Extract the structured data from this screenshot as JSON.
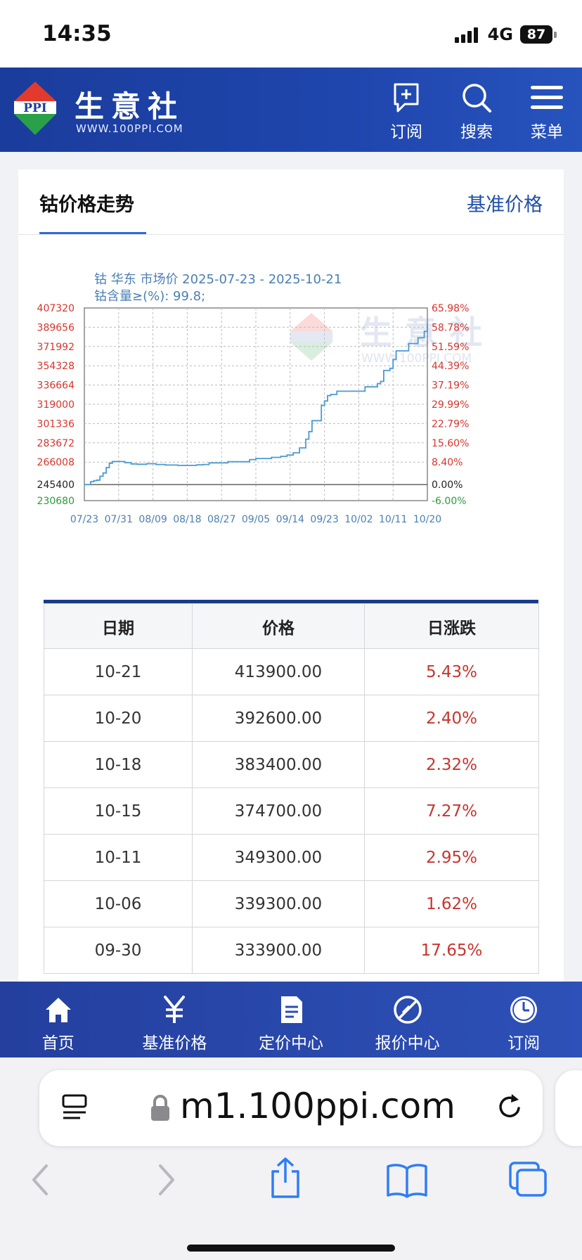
{
  "status": {
    "time": "14:35",
    "network": "4G",
    "battery": "87"
  },
  "header": {
    "logo_text": "生意社",
    "logo_url": "WWW.100PPI.COM",
    "logo_badge": "PPI",
    "buttons": [
      {
        "label": "订阅",
        "icon": "subscribe-icon"
      },
      {
        "label": "搜索",
        "icon": "search-icon"
      },
      {
        "label": "菜单",
        "icon": "menu-icon"
      }
    ]
  },
  "card": {
    "title": "钴价格走势",
    "link": "基准价格"
  },
  "chart_data": {
    "type": "line",
    "title": "钴 华东 市场价 2025-07-23 - 2025-10-21",
    "subtitle": "钴含量≥(%): 99.8;",
    "watermark": "生意社",
    "watermark_url": "WWW.100PPI.COM",
    "x_ticks": [
      "07/23",
      "07/31",
      "08/09",
      "08/18",
      "08/27",
      "09/05",
      "09/14",
      "09/23",
      "10/02",
      "10/11",
      "10/20"
    ],
    "y_left_ticks": [
      "407320",
      "389656",
      "371992",
      "354328",
      "336664",
      "319000",
      "301336",
      "283672",
      "266008",
      "245400",
      "230680"
    ],
    "y_right_ticks": [
      "65.98%",
      "58.78%",
      "51.59%",
      "44.39%",
      "37.19%",
      "29.99%",
      "22.79%",
      "15.60%",
      "8.40%",
      "0.00%",
      "-6.00%"
    ],
    "ylim": [
      230680,
      407320
    ],
    "baseline": 245400,
    "series": [
      {
        "values": [
          [
            0,
            245400
          ],
          [
            1,
            245400
          ],
          [
            2,
            248000
          ],
          [
            3,
            249000
          ],
          [
            4,
            249500
          ],
          [
            5,
            253000
          ],
          [
            6,
            256000
          ],
          [
            7,
            261000
          ],
          [
            8,
            265000
          ],
          [
            9,
            266500
          ],
          [
            11,
            266500
          ],
          [
            13,
            265500
          ],
          [
            15,
            264300
          ],
          [
            17,
            264000
          ],
          [
            20,
            264500
          ],
          [
            23,
            263800
          ],
          [
            26,
            263300
          ],
          [
            30,
            263000
          ],
          [
            34,
            263000
          ],
          [
            36,
            263500
          ],
          [
            38,
            263800
          ],
          [
            40,
            265300
          ],
          [
            43,
            265300
          ],
          [
            46,
            266300
          ],
          [
            49,
            266300
          ],
          [
            51,
            266300
          ],
          [
            53,
            268300
          ],
          [
            55,
            269300
          ],
          [
            58,
            269300
          ],
          [
            60,
            270300
          ],
          [
            63,
            271300
          ],
          [
            65,
            272500
          ],
          [
            67,
            274500
          ],
          [
            69,
            279000
          ],
          [
            71,
            287000
          ],
          [
            72,
            294000
          ],
          [
            73,
            304000
          ],
          [
            75,
            304000
          ],
          [
            76,
            318000
          ],
          [
            77,
            322000
          ],
          [
            78,
            327000
          ],
          [
            79,
            328000
          ],
          [
            81,
            331000
          ],
          [
            83,
            331000
          ],
          [
            85,
            331000
          ],
          [
            87,
            331000
          ],
          [
            89,
            331000
          ],
          [
            90,
            335000
          ],
          [
            92,
            335000
          ],
          [
            94,
            338000
          ],
          [
            95,
            340000
          ],
          [
            96,
            350000
          ],
          [
            98,
            352000
          ],
          [
            99,
            360000
          ],
          [
            100,
            368000
          ],
          [
            101,
            368000
          ],
          [
            102,
            368000
          ],
          [
            104,
            374700
          ],
          [
            106,
            374700
          ],
          [
            107,
            380000
          ],
          [
            109,
            386000
          ],
          [
            110,
            392600
          ]
        ]
      }
    ],
    "grid": true
  },
  "table": {
    "headers": [
      "日期",
      "价格",
      "日涨跌"
    ],
    "rows": [
      [
        "10-21",
        "413900.00",
        "5.43%"
      ],
      [
        "10-20",
        "392600.00",
        "2.40%"
      ],
      [
        "10-18",
        "383400.00",
        "2.32%"
      ],
      [
        "10-15",
        "374700.00",
        "7.27%"
      ],
      [
        "10-11",
        "349300.00",
        "2.95%"
      ],
      [
        "10-06",
        "339300.00",
        "1.62%"
      ],
      [
        "09-30",
        "333900.00",
        "17.65%"
      ]
    ]
  },
  "bottom_nav": [
    {
      "label": "首页",
      "icon": "home-icon"
    },
    {
      "label": "基准价格",
      "icon": "yen-icon"
    },
    {
      "label": "定价中心",
      "icon": "document-icon"
    },
    {
      "label": "报价中心",
      "icon": "slash-circle-icon"
    },
    {
      "label": "订阅",
      "icon": "clock-icon"
    }
  ],
  "browser": {
    "url": "m1.100ppi.com"
  },
  "colors": {
    "brand_blue": "#1b3fa0",
    "line": "#4a9ad4",
    "up_red": "#c8352e",
    "down_green": "#2a9c3a"
  }
}
